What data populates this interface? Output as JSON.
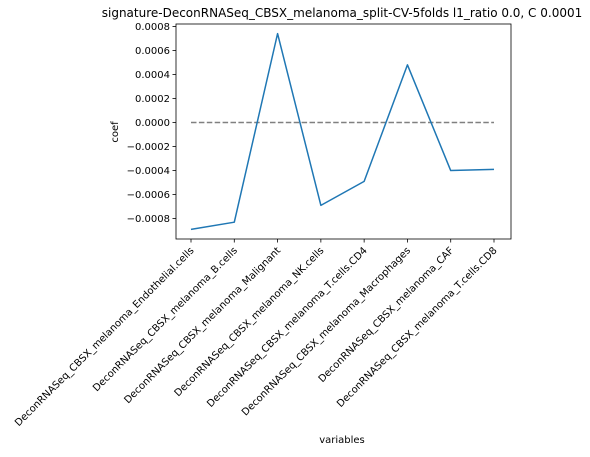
{
  "chart_data": {
    "type": "line",
    "title": "signature-DeconRNASeq_CBSX_melanoma_split-CV-5folds l1_ratio 0.0, C 0.0001",
    "xlabel": "variables",
    "ylabel": "coef",
    "categories": [
      "DeconRNASeq_CBSX_melanoma_Endothelial.cells",
      "DeconRNASeq_CBSX_melanoma_B.cells",
      "DeconRNASeq_CBSX_melanoma_Malignant",
      "DeconRNASeq_CBSX_melanoma_NK.cells",
      "DeconRNASeq_CBSX_melanoma_T.cells.CD4",
      "DeconRNASeq_CBSX_melanoma_Macrophages",
      "DeconRNASeq_CBSX_melanoma_CAF",
      "DeconRNASeq_CBSX_melanoma_T.cells.CD8"
    ],
    "series": [
      {
        "values": [
          -0.00089,
          -0.00083,
          0.00074,
          -0.00069,
          -0.00049,
          0.00048,
          -0.0004,
          -0.00039
        ],
        "color": "#1f77b4"
      }
    ],
    "reference_line": {
      "y": 0,
      "style": "dashed",
      "color": "#808080"
    },
    "yticks": [
      {
        "value": -0.0008,
        "label": "−0.0008"
      },
      {
        "value": -0.0006,
        "label": "−0.0006"
      },
      {
        "value": -0.0004,
        "label": "−0.0004"
      },
      {
        "value": -0.0002,
        "label": "−0.0002"
      },
      {
        "value": 0.0,
        "label": "0.0000"
      },
      {
        "value": 0.0002,
        "label": "0.0002"
      },
      {
        "value": 0.0004,
        "label": "0.0004"
      },
      {
        "value": 0.0006,
        "label": "0.0006"
      },
      {
        "value": 0.0008,
        "label": "0.0008"
      }
    ],
    "ylim": [
      -0.00097,
      0.00082
    ],
    "grid": false,
    "legend": "none"
  }
}
